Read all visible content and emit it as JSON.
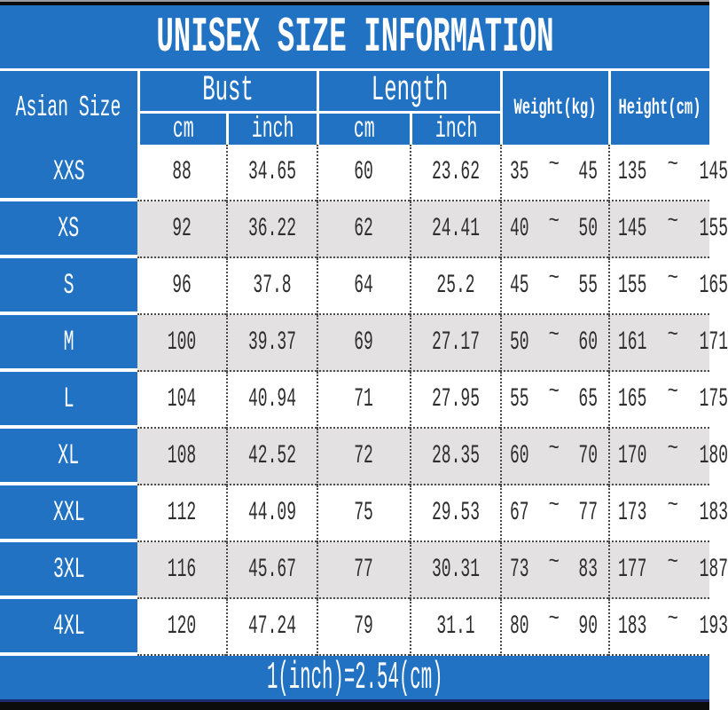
{
  "title": "UNISEX SIZE INFORMATION",
  "header": {
    "size_col": "Asian Size",
    "bust": "Bust",
    "length": "Length",
    "weight": "Weight(kg)",
    "height": "Height(cm)",
    "cm": "cm",
    "inch": "inch"
  },
  "range_separator": "~",
  "rows": [
    {
      "size": "XXS",
      "bust_cm": "88",
      "bust_inch": "34.65",
      "length_cm": "60",
      "length_inch": "23.62",
      "weight": [
        "35",
        "45"
      ],
      "height": [
        "135",
        "145"
      ]
    },
    {
      "size": "XS",
      "bust_cm": "92",
      "bust_inch": "36.22",
      "length_cm": "62",
      "length_inch": "24.41",
      "weight": [
        "40",
        "50"
      ],
      "height": [
        "145",
        "155"
      ]
    },
    {
      "size": "S",
      "bust_cm": "96",
      "bust_inch": "37.8",
      "length_cm": "64",
      "length_inch": "25.2",
      "weight": [
        "45",
        "55"
      ],
      "height": [
        "155",
        "165"
      ]
    },
    {
      "size": "M",
      "bust_cm": "100",
      "bust_inch": "39.37",
      "length_cm": "69",
      "length_inch": "27.17",
      "weight": [
        "50",
        "60"
      ],
      "height": [
        "161",
        "171"
      ]
    },
    {
      "size": "L",
      "bust_cm": "104",
      "bust_inch": "40.94",
      "length_cm": "71",
      "length_inch": "27.95",
      "weight": [
        "55",
        "65"
      ],
      "height": [
        "165",
        "175"
      ]
    },
    {
      "size": "XL",
      "bust_cm": "108",
      "bust_inch": "42.52",
      "length_cm": "72",
      "length_inch": "28.35",
      "weight": [
        "60",
        "70"
      ],
      "height": [
        "170",
        "180"
      ]
    },
    {
      "size": "XXL",
      "bust_cm": "112",
      "bust_inch": "44.09",
      "length_cm": "75",
      "length_inch": "29.53",
      "weight": [
        "67",
        "77"
      ],
      "height": [
        "173",
        "183"
      ]
    },
    {
      "size": "3XL",
      "bust_cm": "116",
      "bust_inch": "45.67",
      "length_cm": "77",
      "length_inch": "30.31",
      "weight": [
        "73",
        "83"
      ],
      "height": [
        "177",
        "187"
      ]
    },
    {
      "size": "4XL",
      "bust_cm": "120",
      "bust_inch": "47.24",
      "length_cm": "79",
      "length_inch": "31.1",
      "weight": [
        "80",
        "90"
      ],
      "height": [
        "183",
        "193"
      ]
    }
  ],
  "footer": "1(inch)=2.54(cm)",
  "colors": {
    "header_blue": "#2272c4",
    "alt_row_gray": "#e3e1e2",
    "text_dark": "#2e2c2d",
    "bottom_navy": "#1d2c70",
    "bar_black": "#0c0c0c"
  }
}
